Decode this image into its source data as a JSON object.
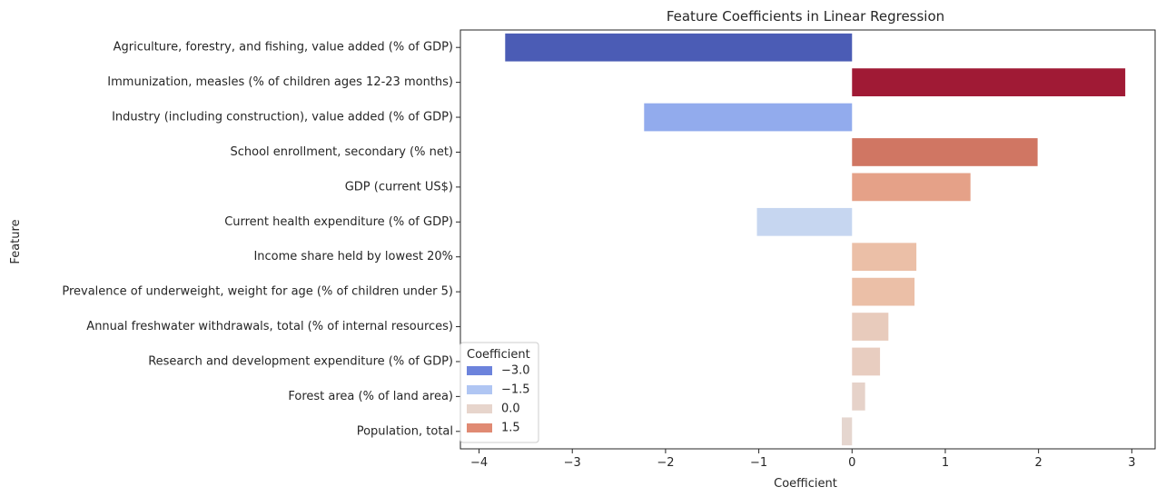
{
  "chart_data": {
    "type": "bar",
    "orientation": "horizontal",
    "title": "Feature Coefficients in Linear Regression",
    "xlabel": "Coefficient",
    "ylabel": "Feature",
    "xlim": [
      -4.2,
      3.25
    ],
    "xticks": [
      -4,
      -3,
      -2,
      -1,
      0,
      1,
      2,
      3
    ],
    "xtick_labels": [
      "−4",
      "−3",
      "−2",
      "−1",
      "0",
      "1",
      "2",
      "3"
    ],
    "grid": false,
    "categories": [
      "Agriculture, forestry, and fishing, value added (% of GDP)",
      "Immunization, measles (% of children ages 12-23 months)",
      "Industry (including construction), value added (% of GDP)",
      "School enrollment, secondary (% net)",
      "GDP (current US$)",
      "Current health expenditure (% of GDP)",
      "Income share held by lowest 20%",
      "Prevalence of underweight, weight for age (% of children under 5)",
      "Annual freshwater withdrawals, total (% of internal resources)",
      "Research and development expenditure (% of GDP)",
      "Forest area (% of land area)",
      "Population, total"
    ],
    "values": [
      -3.72,
      2.93,
      -2.23,
      1.99,
      1.27,
      -1.02,
      0.69,
      0.67,
      0.39,
      0.3,
      0.14,
      -0.11
    ],
    "colors": [
      "#4b5cb5",
      "#a01a35",
      "#92abed",
      "#d07663",
      "#e5a188",
      "#c6d6f0",
      "#ebbfa7",
      "#ebbfa7",
      "#e8cbbc",
      "#e8cdc0",
      "#e6d2c9",
      "#e5d6cf"
    ],
    "legend": {
      "title": "Coefficient",
      "position": "lower-left",
      "entries": [
        {
          "label": "−3.0",
          "color": "#6c83dc"
        },
        {
          "label": "−1.5",
          "color": "#b0c6f3"
        },
        {
          "label": "0.0",
          "color": "#e7d5cc"
        },
        {
          "label": "1.5",
          "color": "#e08a73"
        }
      ]
    }
  }
}
